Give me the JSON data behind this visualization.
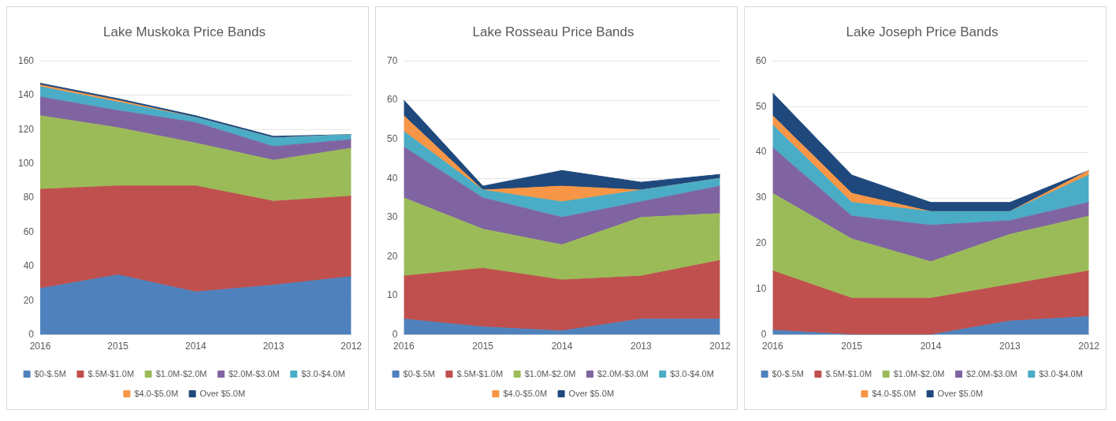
{
  "chart_data": [
    {
      "type": "area",
      "title": "Lake Muskoka Price Bands",
      "categories": [
        "2016",
        "2015",
        "2014",
        "2013",
        "2012"
      ],
      "stacked": true,
      "grid": "y",
      "legend": "bottom",
      "ylim": [
        0,
        160
      ],
      "yticks": [
        0,
        20,
        40,
        60,
        80,
        100,
        120,
        140,
        160
      ],
      "series": [
        {
          "name": "$0-$.5M",
          "color": "#4f81bd",
          "values": [
            27,
            35,
            25,
            29,
            34
          ]
        },
        {
          "name": "$.5M-$1.0M",
          "color": "#c0504d",
          "values": [
            58,
            52,
            62,
            49,
            47
          ]
        },
        {
          "name": "$1.0M-$2.0M",
          "color": "#9bbb59",
          "values": [
            43,
            34,
            25,
            24,
            28
          ]
        },
        {
          "name": "$2.0M-$3.0M",
          "color": "#8064a2",
          "values": [
            11,
            10,
            12,
            8,
            5
          ]
        },
        {
          "name": "$3.0-$4.0M",
          "color": "#4bacc6",
          "values": [
            6,
            5,
            3,
            5,
            3
          ]
        },
        {
          "name": "$4.0-$5.0M",
          "color": "#f79646",
          "values": [
            1,
            1,
            0,
            0,
            0
          ]
        },
        {
          "name": "Over $5.0M",
          "color": "#1f497d",
          "values": [
            1,
            1,
            1,
            1,
            0
          ]
        }
      ]
    },
    {
      "type": "area",
      "title": "Lake Rosseau Price Bands",
      "categories": [
        "2016",
        "2015",
        "2014",
        "2013",
        "2012"
      ],
      "stacked": true,
      "grid": "y",
      "legend": "bottom",
      "ylim": [
        0,
        70
      ],
      "yticks": [
        0,
        10,
        20,
        30,
        40,
        50,
        60,
        70
      ],
      "series": [
        {
          "name": "$0-$.5M",
          "color": "#4f81bd",
          "values": [
            4,
            2,
            1,
            4,
            4
          ]
        },
        {
          "name": "$.5M-$1.0M",
          "color": "#c0504d",
          "values": [
            11,
            15,
            13,
            11,
            15
          ]
        },
        {
          "name": "$1.0M-$2.0M",
          "color": "#9bbb59",
          "values": [
            20,
            10,
            9,
            15,
            12
          ]
        },
        {
          "name": "$2.0M-$3.0M",
          "color": "#8064a2",
          "values": [
            13,
            8,
            7,
            4,
            7
          ]
        },
        {
          "name": "$3.0-$4.0M",
          "color": "#4bacc6",
          "values": [
            4,
            2,
            4,
            3,
            2
          ]
        },
        {
          "name": "$4.0-$5.0M",
          "color": "#f79646",
          "values": [
            4,
            0,
            4,
            0,
            0
          ]
        },
        {
          "name": "Over $5.0M",
          "color": "#1f497d",
          "values": [
            4,
            1,
            4,
            2,
            1
          ]
        }
      ]
    },
    {
      "type": "area",
      "title": "Lake Joseph Price Bands",
      "categories": [
        "2016",
        "2015",
        "2014",
        "2013",
        "2012"
      ],
      "stacked": true,
      "grid": "y",
      "legend": "bottom",
      "ylim": [
        0,
        60
      ],
      "yticks": [
        0,
        10,
        20,
        30,
        40,
        50,
        60
      ],
      "series": [
        {
          "name": "$0-$.5M",
          "color": "#4f81bd",
          "values": [
            1,
            0,
            0,
            3,
            4
          ]
        },
        {
          "name": "$.5M-$1.0M",
          "color": "#c0504d",
          "values": [
            13,
            8,
            8,
            8,
            10
          ]
        },
        {
          "name": "$1.0M-$2.0M",
          "color": "#9bbb59",
          "values": [
            17,
            13,
            8,
            11,
            12
          ]
        },
        {
          "name": "$2.0M-$3.0M",
          "color": "#8064a2",
          "values": [
            10,
            5,
            8,
            3,
            3
          ]
        },
        {
          "name": "$3.0-$4.0M",
          "color": "#4bacc6",
          "values": [
            5,
            3,
            3,
            2,
            6
          ]
        },
        {
          "name": "$4.0-$5.0M",
          "color": "#f79646",
          "values": [
            2,
            2,
            0,
            0,
            1
          ]
        },
        {
          "name": "Over $5.0M",
          "color": "#1f497d",
          "values": [
            5,
            4,
            2,
            2,
            0
          ]
        }
      ]
    }
  ]
}
